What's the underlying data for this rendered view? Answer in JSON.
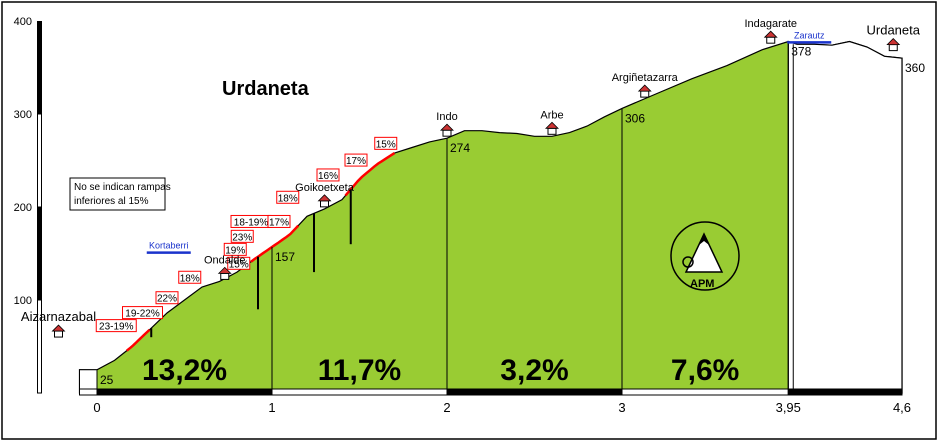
{
  "chart_data": {
    "type": "area",
    "title": "Urdaneta",
    "note_lines": [
      "No se indican rampas",
      "inferiores al 15%"
    ],
    "logo_text": "APM",
    "colors": {
      "fill": "#99cc33",
      "steep": "#ff0000",
      "axis": "#000000",
      "sign": "#1a33cc"
    },
    "xlim": [
      -0.3,
      4.8
    ],
    "ylim": [
      0,
      400
    ],
    "x_ticks": [
      {
        "value": 0,
        "label": "0"
      },
      {
        "value": 1,
        "label": "1"
      },
      {
        "value": 2,
        "label": "2"
      },
      {
        "value": 3,
        "label": "3"
      },
      {
        "value": 3.95,
        "label": "3,95"
      },
      {
        "value": 4.6,
        "label": "4,6"
      }
    ],
    "y_ticks": [
      {
        "value": 100,
        "label": "100"
      },
      {
        "value": 200,
        "label": "200"
      },
      {
        "value": 300,
        "label": "300"
      },
      {
        "value": 400,
        "label": "400"
      }
    ],
    "profile": [
      [
        0,
        25
      ],
      [
        0.1,
        35
      ],
      [
        0.2,
        50
      ],
      [
        0.3,
        68
      ],
      [
        0.4,
        86
      ],
      [
        0.5,
        100
      ],
      [
        0.6,
        114
      ],
      [
        0.7,
        120
      ],
      [
        0.8,
        130
      ],
      [
        0.9,
        144
      ],
      [
        1.0,
        157
      ],
      [
        1.1,
        170
      ],
      [
        1.2,
        190
      ],
      [
        1.3,
        198
      ],
      [
        1.4,
        208
      ],
      [
        1.5,
        230
      ],
      [
        1.6,
        246
      ],
      [
        1.7,
        258
      ],
      [
        1.8,
        264
      ],
      [
        1.9,
        270
      ],
      [
        2.0,
        274
      ],
      [
        2.1,
        282
      ],
      [
        2.2,
        282
      ],
      [
        2.3,
        280
      ],
      [
        2.4,
        279
      ],
      [
        2.5,
        276
      ],
      [
        2.6,
        276
      ],
      [
        2.7,
        280
      ],
      [
        2.8,
        287
      ],
      [
        2.9,
        297
      ],
      [
        3.0,
        306
      ],
      [
        3.2,
        322
      ],
      [
        3.4,
        338
      ],
      [
        3.6,
        352
      ],
      [
        3.8,
        369
      ],
      [
        3.95,
        378
      ],
      [
        4.0,
        375
      ],
      [
        4.1,
        375
      ],
      [
        4.2,
        374
      ],
      [
        4.3,
        378
      ],
      [
        4.4,
        372
      ],
      [
        4.5,
        362
      ],
      [
        4.6,
        360
      ]
    ],
    "steep_ranges": [
      [
        0.17,
        0.3
      ],
      [
        0.88,
        1.15
      ],
      [
        1.42,
        1.7
      ]
    ],
    "segments": [
      {
        "from": 0,
        "to": 1,
        "gradient": "13,2%"
      },
      {
        "from": 1,
        "to": 2,
        "gradient": "11,7%"
      },
      {
        "from": 2,
        "to": 3,
        "gradient": "3,2%"
      },
      {
        "from": 3,
        "to": 3.95,
        "gradient": "7,6%"
      }
    ],
    "elevation_labels": [
      {
        "x": 0,
        "y": 25,
        "label": "25"
      },
      {
        "x": 1,
        "y": 157,
        "label": "157"
      },
      {
        "x": 2,
        "y": 274,
        "label": "274"
      },
      {
        "x": 3,
        "y": 306,
        "label": "306"
      },
      {
        "x": 3.95,
        "y": 378,
        "label": "378"
      },
      {
        "x": 4.6,
        "y": 360,
        "label": "360"
      }
    ],
    "places": [
      {
        "name": "Aizarnazabal",
        "x": -0.22,
        "y": 58
      },
      {
        "name": "Ondalde",
        "x": 0.73,
        "y": 120
      },
      {
        "name": "Goikoetxeta",
        "x": 1.3,
        "y": 198
      },
      {
        "name": "Indo",
        "x": 2.0,
        "y": 274
      },
      {
        "name": "Arbe",
        "x": 2.6,
        "y": 276
      },
      {
        "name": "Argiñetazarra",
        "x": 3.13,
        "y": 316
      },
      {
        "name": "Indagarate",
        "x": 3.85,
        "y": 374
      },
      {
        "name": "Urdaneta",
        "x": 4.55,
        "y": 366
      }
    ],
    "ramps": [
      {
        "label": "23-19%",
        "x": 0.11,
        "y": 66
      },
      {
        "label": "19-22%",
        "x": 0.26,
        "y": 80
      },
      {
        "label": "22%",
        "x": 0.4,
        "y": 96
      },
      {
        "label": "18%",
        "x": 0.53,
        "y": 118
      },
      {
        "label": "15%",
        "x": 0.81,
        "y": 133
      },
      {
        "label": "19%",
        "x": 0.79,
        "y": 148
      },
      {
        "label": "23%",
        "x": 0.83,
        "y": 162
      },
      {
        "label": "18-19%",
        "x": 0.88,
        "y": 178
      },
      {
        "label": "17%",
        "x": 1.04,
        "y": 178
      },
      {
        "label": "18%",
        "x": 1.09,
        "y": 204
      },
      {
        "label": "16%",
        "x": 1.32,
        "y": 228
      },
      {
        "label": "17%",
        "x": 1.48,
        "y": 244
      },
      {
        "label": "15%",
        "x": 1.65,
        "y": 262
      }
    ],
    "signs": [
      {
        "label": "Kortaberri",
        "x": 0.41,
        "y": 151
      },
      {
        "label": "Zarautz",
        "x": 4.07,
        "y": 377
      }
    ]
  }
}
